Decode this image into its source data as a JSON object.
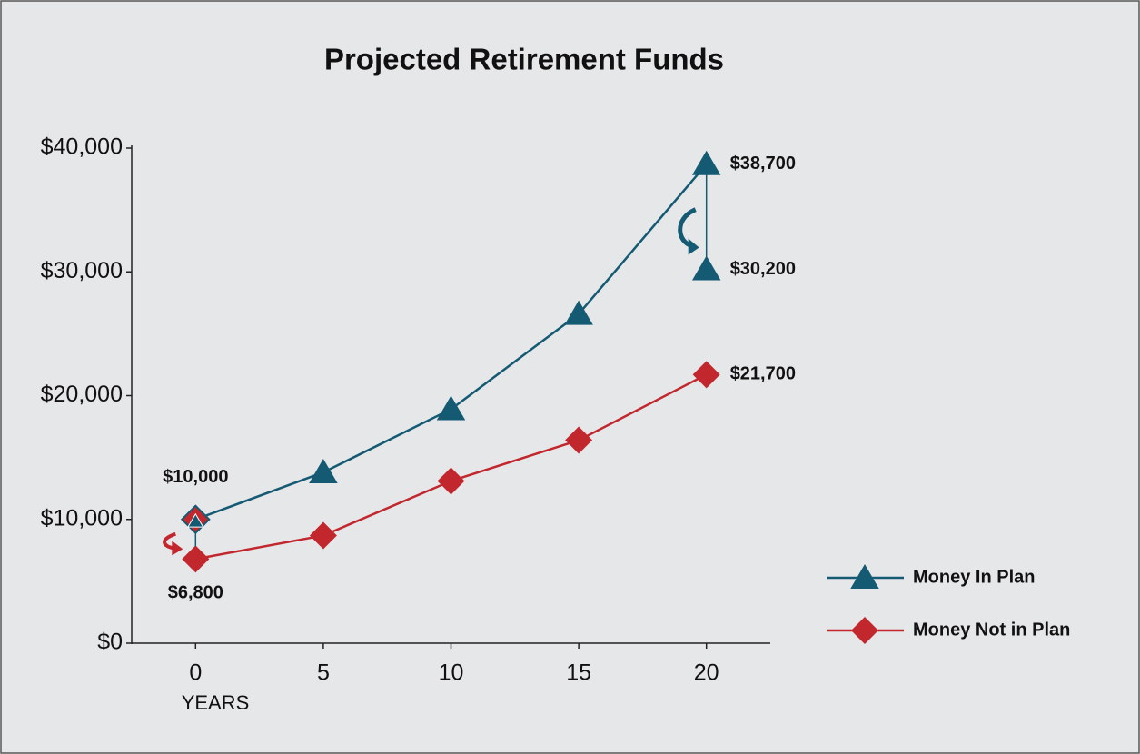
{
  "chart_data": {
    "type": "line",
    "title": "Projected Retirement Funds",
    "x_label": "YEARS",
    "x": [
      0,
      5,
      10,
      15,
      20
    ],
    "xlim": [
      -2.5,
      22.5
    ],
    "xticks": [
      0,
      5,
      10,
      15,
      20
    ],
    "ylim": [
      0,
      40000
    ],
    "yticks": [
      {
        "value": 0,
        "label": "$0"
      },
      {
        "value": 10000,
        "label": "$10,000"
      },
      {
        "value": 20000,
        "label": "$20,000"
      },
      {
        "value": 30000,
        "label": "$30,000"
      },
      {
        "value": 40000,
        "label": "$40,000"
      }
    ],
    "series": [
      {
        "name": "Money In Plan",
        "color": "#155a73",
        "marker": "triangle",
        "values": [
          10000,
          13800,
          18900,
          26600,
          38700
        ],
        "value_labels": [
          "$10,000",
          null,
          null,
          null,
          "$38,700"
        ]
      },
      {
        "name": "Money Not in Plan",
        "color": "#c1272d",
        "marker": "diamond",
        "values": [
          6800,
          8700,
          13100,
          16400,
          21700
        ],
        "value_labels": [
          "$6,800",
          null,
          null,
          null,
          "$21,700"
        ]
      }
    ],
    "annotations": [
      {
        "x": 20,
        "value": 30200,
        "label": "$30,200",
        "color": "#155a73"
      }
    ],
    "legend": "right",
    "grid": false
  }
}
